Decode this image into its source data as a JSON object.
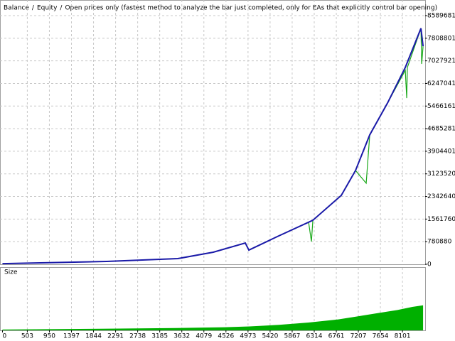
{
  "chart_data": {
    "type": "line",
    "title_separator": "/",
    "subtitle": "Open prices only (fastest method to analyze the bar just completed, only for EAs that explicitly control bar opening)",
    "subtitle_color": "#e00000",
    "series": [
      {
        "name": "Balance",
        "color": "#1a1aa8",
        "x": [
          0,
          2110,
          3550,
          4270,
          4918,
          4990,
          5566,
          6286,
          6862,
          7150,
          7438,
          7798,
          8158,
          8475,
          8518
        ],
        "values": [
          20000,
          98000,
          196000,
          417000,
          736000,
          490000,
          957000,
          1520000,
          2380000,
          3240000,
          4470000,
          5570000,
          6800000,
          8150000,
          7530000
        ]
      },
      {
        "name": "Equity",
        "color": "#1aa81a",
        "x": [
          0,
          2110,
          3550,
          4270,
          4918,
          4990,
          5566,
          6200,
          6257,
          6286,
          6862,
          7150,
          7366,
          7438,
          7798,
          8158,
          8187,
          8200,
          8475,
          8490,
          8518
        ],
        "values": [
          20000,
          98000,
          196000,
          417000,
          736000,
          490000,
          957000,
          1450000,
          785000,
          1520000,
          2380000,
          3240000,
          2800000,
          4470000,
          5570000,
          6700000,
          5740000,
          6800000,
          8150000,
          6920000,
          7530000
        ]
      }
    ],
    "xlim": [
      -50,
      8560
    ],
    "xticks": [
      0,
      503,
      950,
      1397,
      1844,
      2291,
      2738,
      3185,
      3632,
      4079,
      4526,
      4973,
      5420,
      5867,
      6314,
      6761,
      7207,
      7654,
      8101
    ],
    "ylim": [
      0,
      9129600
    ],
    "yticks": [
      0,
      780880,
      1561760,
      2342640,
      3123520,
      3904401,
      4685281,
      5466161,
      6247041,
      7027921,
      7808801,
      8589681
    ],
    "grid": true,
    "size_panel": {
      "type": "area",
      "label": "Size",
      "color": "#00b000",
      "x": [
        0,
        2000,
        3500,
        4500,
        5000,
        5600,
        6200,
        6800,
        7200,
        7600,
        8000,
        8300,
        8518
      ],
      "values": [
        1,
        2,
        3,
        4,
        5,
        7,
        10,
        14,
        18,
        22,
        26,
        30,
        32
      ],
      "ylim": [
        0,
        80
      ]
    }
  }
}
